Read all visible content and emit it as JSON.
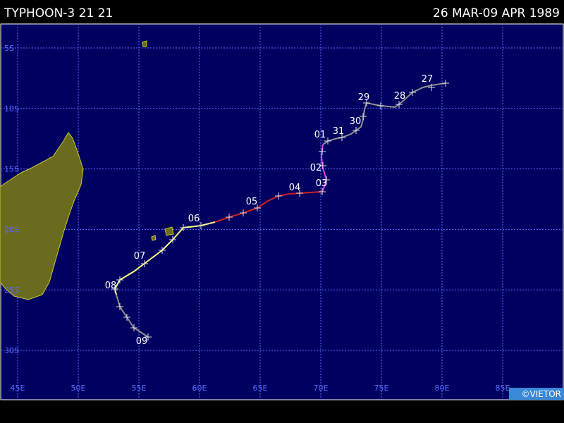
{
  "header": {
    "title": "TYPHOON-3 21 21",
    "date": "26 MAR-09 APR 1989"
  },
  "lat_labels": [
    "5S",
    "10S",
    "15S",
    "20S",
    "25S",
    "30S"
  ],
  "lon_labels": [
    "45E",
    "50E",
    "55E",
    "60E",
    "65E",
    "70E",
    "75E",
    "80E",
    "85E"
  ],
  "day_labels": [
    "27",
    "28",
    "29",
    "30",
    "31",
    "01",
    "02",
    "03",
    "04",
    "05",
    "06",
    "07",
    "08",
    "09"
  ],
  "credit": "©VIETOR"
}
